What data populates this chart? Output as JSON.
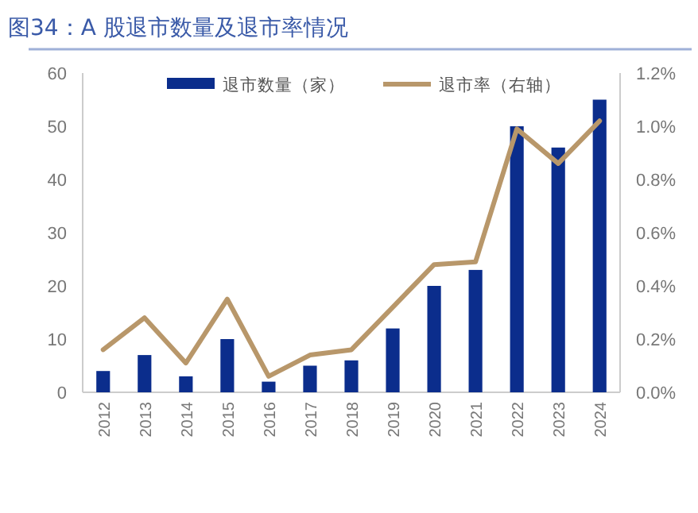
{
  "chart_data": {
    "type": "bar",
    "title": "图34：A 股退市数量及退市率情况",
    "categories": [
      "2012",
      "2013",
      "2014",
      "2015",
      "2016",
      "2017",
      "2018",
      "2019",
      "2020",
      "2021",
      "2022",
      "2023",
      "2024"
    ],
    "series": [
      {
        "name": "退市数量（家）",
        "color": "#0b2d8c",
        "values": [
          4,
          7,
          3,
          10,
          2,
          5,
          6,
          12,
          20,
          23,
          50,
          46,
          55
        ]
      },
      {
        "name": "退市率（右轴）",
        "type": "line",
        "axis": "y2",
        "color": "#b8976a",
        "values": [
          0.16,
          0.28,
          0.11,
          0.35,
          0.06,
          0.14,
          0.16,
          0.32,
          0.48,
          0.49,
          0.99,
          0.86,
          1.02
        ]
      }
    ],
    "ylim": [
      0,
      60
    ],
    "yticks": [
      0,
      10,
      20,
      30,
      40,
      50,
      60
    ],
    "y2lim": [
      0,
      1.2
    ],
    "y2ticks": [
      {
        "value": 0,
        "label": "0.0%"
      },
      {
        "value": 0.2,
        "label": "0.2%"
      },
      {
        "value": 0.4,
        "label": "0.4%"
      },
      {
        "value": 0.6,
        "label": "0.6%"
      },
      {
        "value": 0.8,
        "label": "0.8%"
      },
      {
        "value": 1.0,
        "label": "1.0%"
      },
      {
        "value": 1.2,
        "label": "1.2%"
      }
    ],
    "legend": "top",
    "grid": false
  }
}
